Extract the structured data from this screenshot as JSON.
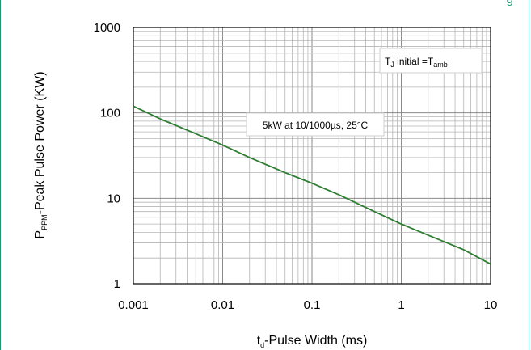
{
  "header_fragment": "g",
  "chart_data": {
    "type": "line",
    "x_scale": "log",
    "y_scale": "log",
    "xlim": [
      0.001,
      10
    ],
    "ylim": [
      1,
      1000
    ],
    "x_ticks": [
      "0.001",
      "0.01",
      "0.1",
      "1",
      "10"
    ],
    "y_ticks": [
      "1",
      "10",
      "100",
      "1000"
    ],
    "grid": true,
    "xlabel": {
      "main": "t",
      "sub": "d",
      "rest": "-Pulse Width (ms)"
    },
    "ylabel": {
      "main": "P",
      "sub": "PPM",
      "rest": "-Peak Pulse Power (KW)"
    },
    "annotation": "5kW at 10/1000µs, 25°C",
    "corner_note": {
      "a": "T",
      "a_sub": "J",
      "b": " initial =T",
      "b_sub": "amb"
    },
    "series": [
      {
        "color": "#2e7d32",
        "x": [
          0.001,
          0.002,
          0.005,
          0.01,
          0.02,
          0.05,
          0.1,
          0.2,
          0.5,
          1,
          2,
          5,
          10
        ],
        "y": [
          120,
          85,
          57,
          42,
          30,
          20,
          15,
          11,
          7,
          5,
          3.7,
          2.5,
          1.7
        ]
      }
    ]
  }
}
